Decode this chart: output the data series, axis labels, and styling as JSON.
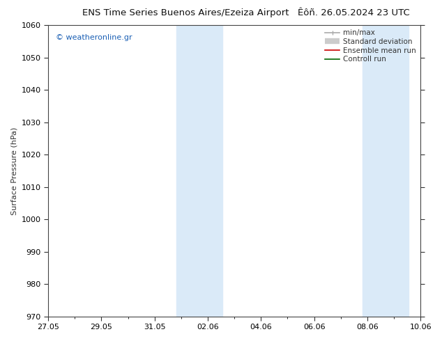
{
  "title_left": "ENS Time Series Buenos Aires/Ezeiza Airport",
  "title_right": "Êôñ. 26.05.2024 23 UTC",
  "ylabel": "Surface Pressure (hPa)",
  "ylim": [
    970,
    1060
  ],
  "yticks": [
    970,
    980,
    990,
    1000,
    1010,
    1020,
    1030,
    1040,
    1050,
    1060
  ],
  "xtick_labels": [
    "27.05",
    "29.05",
    "31.05",
    "02.06",
    "04.06",
    "06.06",
    "08.06",
    "10.06"
  ],
  "shaded_bands": [
    {
      "x_start": 5.5,
      "x_end": 7.5
    },
    {
      "x_start": 13.5,
      "x_end": 15.5
    }
  ],
  "shaded_color": "#daeaf8",
  "watermark": "© weatheronline.gr",
  "watermark_color": "#1a5fb4",
  "legend_entries": [
    {
      "label": "min/max",
      "color": "#aaaaaa",
      "lw": 1.2
    },
    {
      "label": "Standard deviation",
      "color": "#cccccc",
      "lw": 6
    },
    {
      "label": "Ensemble mean run",
      "color": "#cc0000",
      "lw": 1.2
    },
    {
      "label": "Controll run",
      "color": "#006600",
      "lw": 1.2
    }
  ],
  "background_color": "#ffffff",
  "plot_bg_color": "#ffffff",
  "tick_color": "#333333",
  "x_min": 0,
  "x_max": 16
}
